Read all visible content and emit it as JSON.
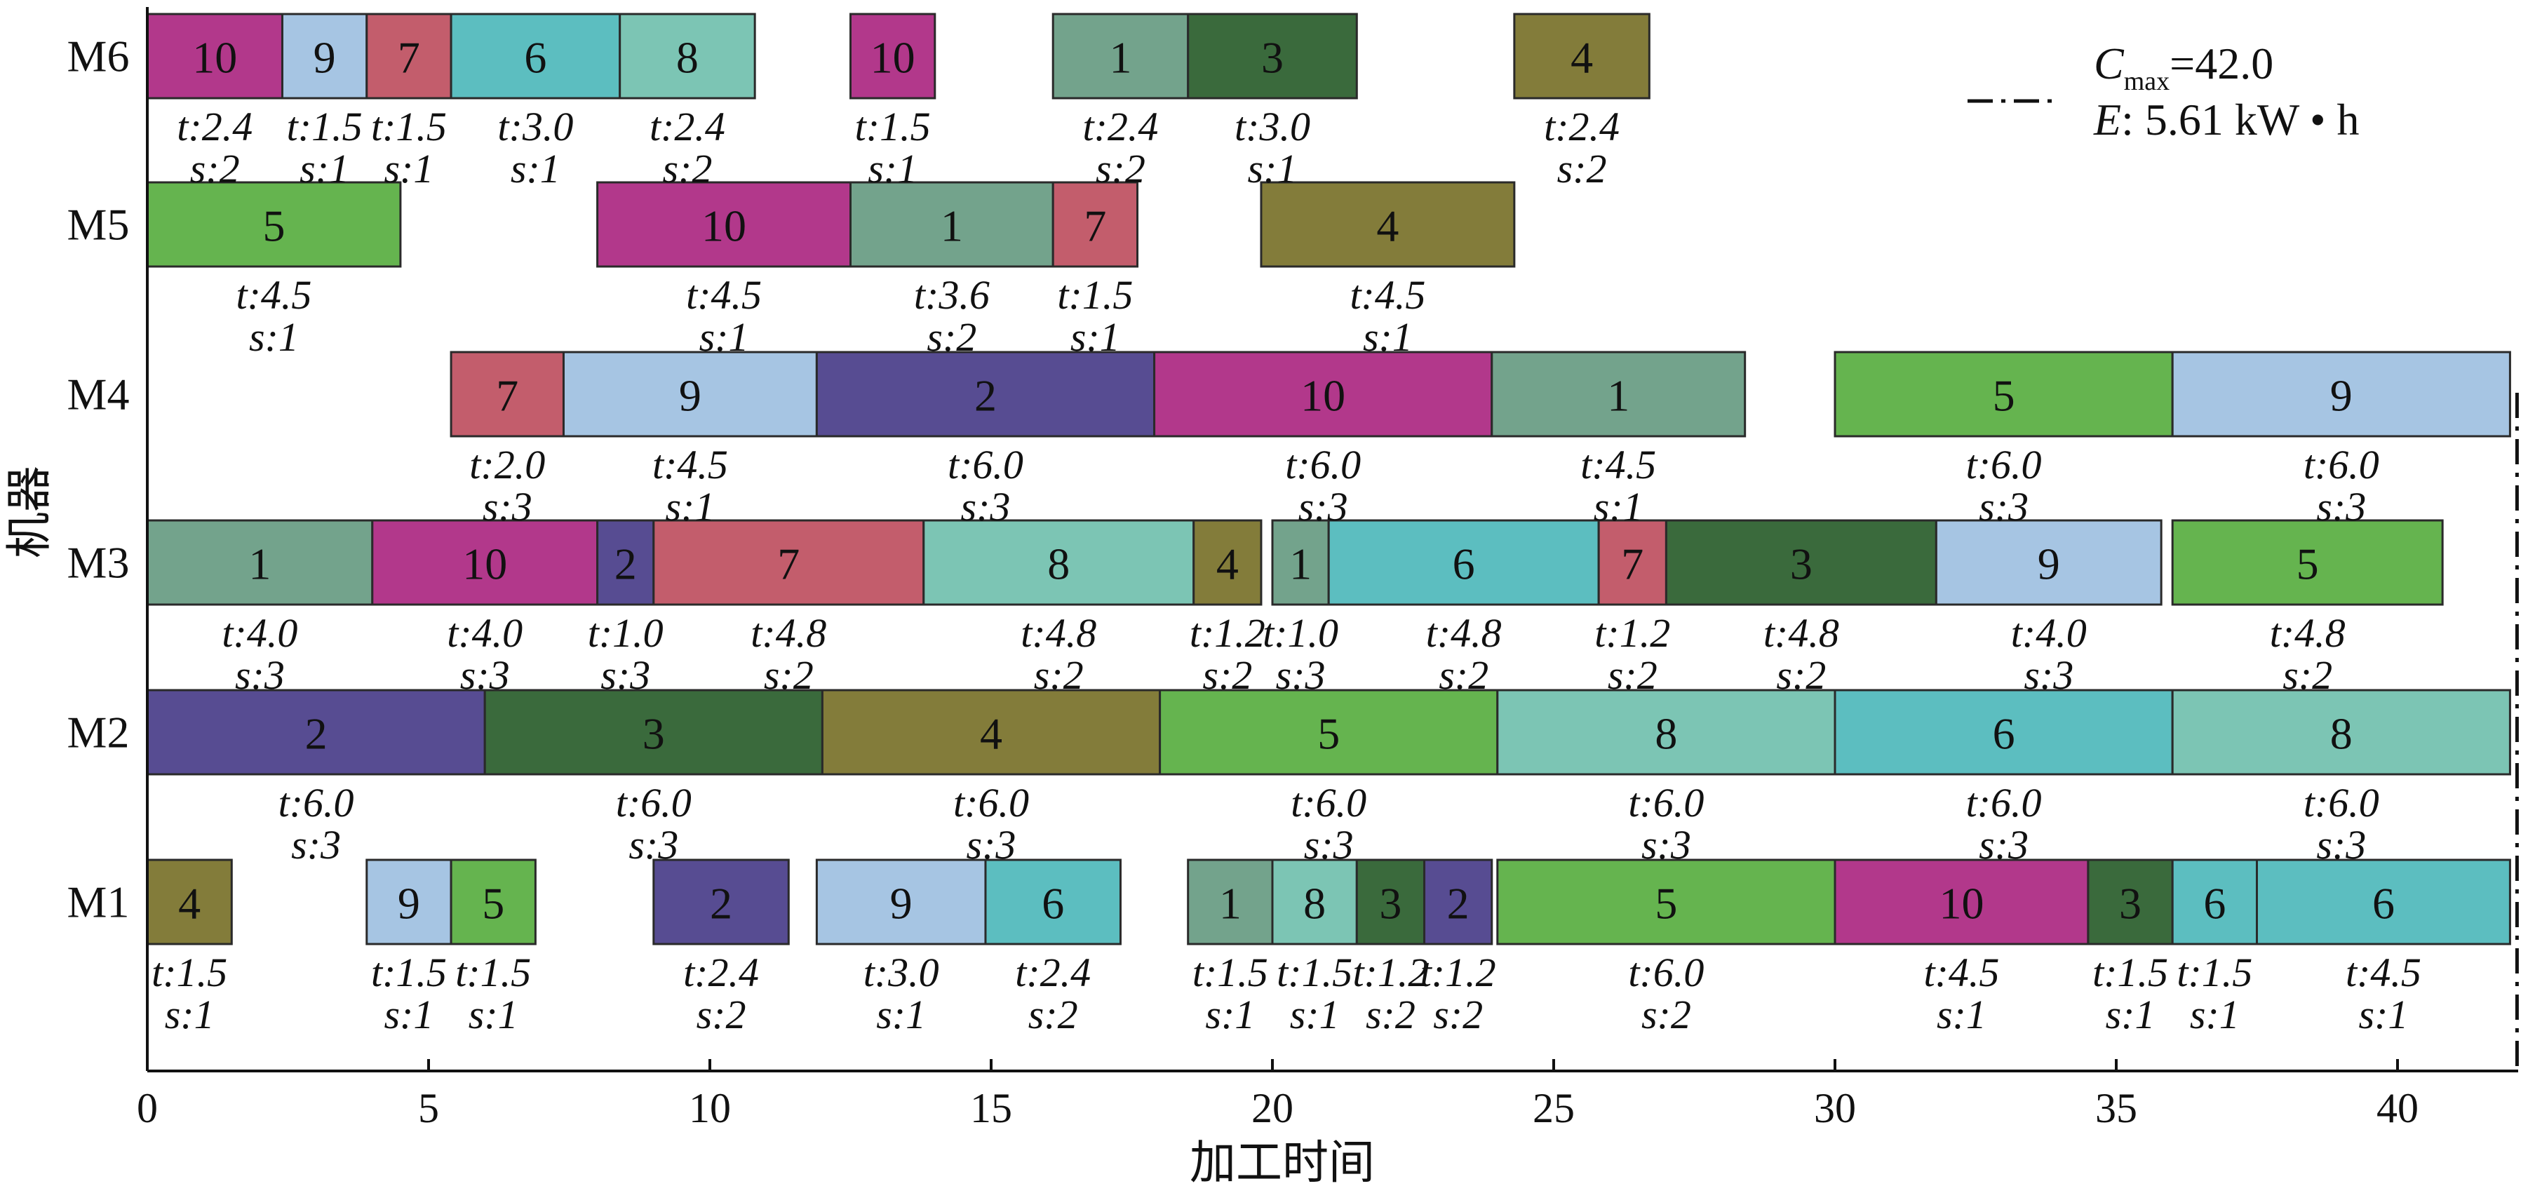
{
  "chart_data": {
    "type": "gantt",
    "xlabel": "加工时间",
    "ylabel": "机器",
    "xlim": [
      0,
      42.3
    ],
    "xticks": [
      0,
      5,
      10,
      15,
      20,
      25,
      30,
      35,
      40
    ],
    "machines": [
      "M1",
      "M2",
      "M3",
      "M4",
      "M5",
      "M6"
    ],
    "makespan_line": 42.0,
    "legend": {
      "cmax_symbol": "C",
      "cmax_subscript": "max",
      "cmax_value": "=42.0",
      "energy_symbol": "E",
      "energy_value": ": 5.61 kW • h"
    },
    "job_colors": {
      "1": "#73a38c",
      "2": "#574c92",
      "3": "#3a6a3c",
      "4": "#837c3a",
      "5": "#65b44f",
      "6": "#5cbec0",
      "7": "#c35d6c",
      "8": "#7cc5b4",
      "9": "#a6c5e3",
      "10": "#b2388b"
    },
    "tasks": [
      {
        "machine": "M6",
        "job": "10",
        "start": 0,
        "end": 2.4,
        "t": "t:2.4",
        "s": "s:2"
      },
      {
        "machine": "M6",
        "job": "9",
        "start": 2.4,
        "end": 3.9,
        "t": "t:1.5",
        "s": "s:1"
      },
      {
        "machine": "M6",
        "job": "7",
        "start": 3.9,
        "end": 5.4,
        "t": "t:1.5",
        "s": "s:1"
      },
      {
        "machine": "M6",
        "job": "6",
        "start": 5.4,
        "end": 8.4,
        "t": "t:3.0",
        "s": "s:1"
      },
      {
        "machine": "M6",
        "job": "8",
        "start": 8.4,
        "end": 10.8,
        "t": "t:2.4",
        "s": "s:2"
      },
      {
        "machine": "M6",
        "job": "10",
        "start": 12.5,
        "end": 14.0,
        "t": "t:1.5",
        "s": "s:1"
      },
      {
        "machine": "M6",
        "job": "1",
        "start": 16.1,
        "end": 18.5,
        "t": "t:2.4",
        "s": "s:2"
      },
      {
        "machine": "M6",
        "job": "3",
        "start": 18.5,
        "end": 21.5,
        "t": "t:3.0",
        "s": "s:1"
      },
      {
        "machine": "M6",
        "job": "4",
        "start": 24.3,
        "end": 26.7,
        "t": "t:2.4",
        "s": "s:2"
      },
      {
        "machine": "M5",
        "job": "5",
        "start": 0,
        "end": 4.5,
        "t": "t:4.5",
        "s": "s:1"
      },
      {
        "machine": "M5",
        "job": "10",
        "start": 8.0,
        "end": 12.5,
        "t": "t:4.5",
        "s": "s:1"
      },
      {
        "machine": "M5",
        "job": "1",
        "start": 12.5,
        "end": 16.1,
        "t": "t:3.6",
        "s": "s:2"
      },
      {
        "machine": "M5",
        "job": "7",
        "start": 16.1,
        "end": 17.6,
        "t": "t:1.5",
        "s": "s:1"
      },
      {
        "machine": "M5",
        "job": "4",
        "start": 19.8,
        "end": 24.3,
        "t": "t:4.5",
        "s": "s:1"
      },
      {
        "machine": "M4",
        "job": "7",
        "start": 5.4,
        "end": 7.4,
        "t": "t:2.0",
        "s": "s:3"
      },
      {
        "machine": "M4",
        "job": "9",
        "start": 7.4,
        "end": 11.9,
        "t": "t:4.5",
        "s": "s:1"
      },
      {
        "machine": "M4",
        "job": "2",
        "start": 11.9,
        "end": 17.9,
        "t": "t:6.0",
        "s": "s:3"
      },
      {
        "machine": "M4",
        "job": "10",
        "start": 17.9,
        "end": 23.9,
        "t": "t:6.0",
        "s": "s:3"
      },
      {
        "machine": "M4",
        "job": "1",
        "start": 23.9,
        "end": 28.4,
        "t": "t:4.5",
        "s": "s:1"
      },
      {
        "machine": "M4",
        "job": "5",
        "start": 30.0,
        "end": 36.0,
        "t": "t:6.0",
        "s": "s:3"
      },
      {
        "machine": "M4",
        "job": "9",
        "start": 36.0,
        "end": 42.0,
        "t": "t:6.0",
        "s": "s:3"
      },
      {
        "machine": "M3",
        "job": "1",
        "start": 0,
        "end": 4.0,
        "t": "t:4.0",
        "s": "s:3"
      },
      {
        "machine": "M3",
        "job": "10",
        "start": 4.0,
        "end": 8.0,
        "t": "t:4.0",
        "s": "s:3"
      },
      {
        "machine": "M3",
        "job": "2",
        "start": 8.0,
        "end": 9.0,
        "t": "t:1.0",
        "s": "s:3"
      },
      {
        "machine": "M3",
        "job": "7",
        "start": 9.0,
        "end": 13.8,
        "t": "t:4.8",
        "s": "s:2"
      },
      {
        "machine": "M3",
        "job": "8",
        "start": 13.8,
        "end": 18.6,
        "t": "t:4.8",
        "s": "s:2"
      },
      {
        "machine": "M3",
        "job": "4",
        "start": 18.6,
        "end": 19.8,
        "t": "t:1.2",
        "s": "s:2"
      },
      {
        "machine": "M3",
        "job": "1",
        "start": 20.0,
        "end": 21.0,
        "t": "t:1.0",
        "s": "s:3"
      },
      {
        "machine": "M3",
        "job": "6",
        "start": 21.0,
        "end": 25.8,
        "t": "t:4.8",
        "s": "s:2"
      },
      {
        "machine": "M3",
        "job": "7",
        "start": 25.8,
        "end": 27.0,
        "t": "t:1.2",
        "s": "s:2"
      },
      {
        "machine": "M3",
        "job": "3",
        "start": 27.0,
        "end": 31.8,
        "t": "t:4.8",
        "s": "s:2"
      },
      {
        "machine": "M3",
        "job": "9",
        "start": 31.8,
        "end": 35.8,
        "t": "t:4.0",
        "s": "s:3"
      },
      {
        "machine": "M3",
        "job": "5",
        "start": 36.0,
        "end": 40.8,
        "t": "t:4.8",
        "s": "s:2"
      },
      {
        "machine": "M2",
        "job": "2",
        "start": 0,
        "end": 6.0,
        "t": "t:6.0",
        "s": "s:3"
      },
      {
        "machine": "M2",
        "job": "3",
        "start": 6.0,
        "end": 12.0,
        "t": "t:6.0",
        "s": "s:3"
      },
      {
        "machine": "M2",
        "job": "4",
        "start": 12.0,
        "end": 18.0,
        "t": "t:6.0",
        "s": "s:3"
      },
      {
        "machine": "M2",
        "job": "5",
        "start": 18.0,
        "end": 24.0,
        "t": "t:6.0",
        "s": "s:3"
      },
      {
        "machine": "M2",
        "job": "8",
        "start": 24.0,
        "end": 30.0,
        "t": "t:6.0",
        "s": "s:3"
      },
      {
        "machine": "M2",
        "job": "6",
        "start": 30.0,
        "end": 36.0,
        "t": "t:6.0",
        "s": "s:3"
      },
      {
        "machine": "M2",
        "job": "8",
        "start": 36.0,
        "end": 42.0,
        "t": "t:6.0",
        "s": "s:3"
      },
      {
        "machine": "M1",
        "job": "4",
        "start": 0,
        "end": 1.5,
        "t": "t:1.5",
        "s": "s:1"
      },
      {
        "machine": "M1",
        "job": "9",
        "start": 3.9,
        "end": 5.4,
        "t": "t:1.5",
        "s": "s:1"
      },
      {
        "machine": "M1",
        "job": "5",
        "start": 5.4,
        "end": 6.9,
        "t": "t:1.5",
        "s": "s:1"
      },
      {
        "machine": "M1",
        "job": "2",
        "start": 9.0,
        "end": 11.4,
        "t": "t:2.4",
        "s": "s:2"
      },
      {
        "machine": "M1",
        "job": "9",
        "start": 11.9,
        "end": 14.9,
        "t": "t:3.0",
        "s": "s:1"
      },
      {
        "machine": "M1",
        "job": "6",
        "start": 14.9,
        "end": 17.3,
        "t": "t:2.4",
        "s": "s:2"
      },
      {
        "machine": "M1",
        "job": "1",
        "start": 18.5,
        "end": 20.0,
        "t": "t:1.5",
        "s": "s:1"
      },
      {
        "machine": "M1",
        "job": "8",
        "start": 20.0,
        "end": 21.5,
        "t": "t:1.5",
        "s": "s:1"
      },
      {
        "machine": "M1",
        "job": "3",
        "start": 21.5,
        "end": 22.7,
        "t": "t:1.2",
        "s": "s:2"
      },
      {
        "machine": "M1",
        "job": "2",
        "start": 22.7,
        "end": 23.9,
        "t": "t:1.2",
        "s": "s:2"
      },
      {
        "machine": "M1",
        "job": "5",
        "start": 24.0,
        "end": 30.0,
        "t": "t:6.0",
        "s": "s:2"
      },
      {
        "machine": "M1",
        "job": "10",
        "start": 30.0,
        "end": 34.5,
        "t": "t:4.5",
        "s": "s:1"
      },
      {
        "machine": "M1",
        "job": "3",
        "start": 34.5,
        "end": 36.0,
        "t": "t:1.5",
        "s": "s:1"
      },
      {
        "machine": "M1",
        "job": "6",
        "start": 36.0,
        "end": 37.5,
        "t": "t:1.5",
        "s": "s:1"
      },
      {
        "machine": "M1",
        "job": "6",
        "start": 37.5,
        "end": 42.0,
        "t": "t:4.5",
        "s": "s:1"
      }
    ]
  }
}
